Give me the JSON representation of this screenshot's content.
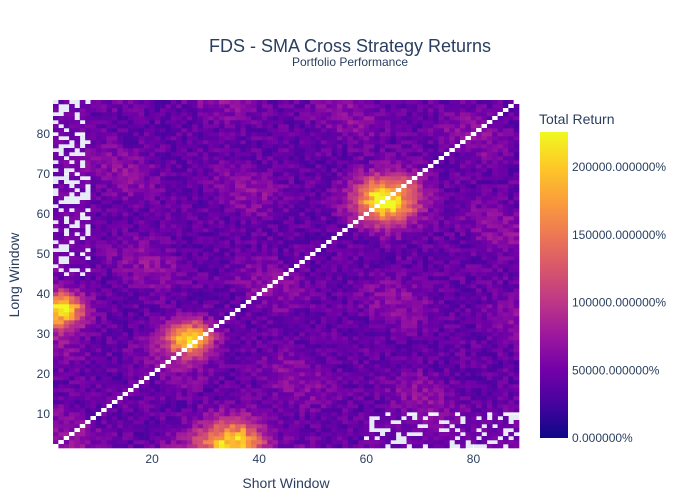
{
  "chart_data": {
    "type": "heatmap",
    "title": "FDS - SMA Cross Strategy Returns",
    "subtitle": "Portfolio Performance",
    "xlabel": "Short Window",
    "ylabel": "Long Window",
    "x_range": [
      2,
      88
    ],
    "y_range": [
      2,
      88
    ],
    "x_ticks": [
      "20",
      "40",
      "60",
      "80"
    ],
    "y_ticks": [
      "10",
      "20",
      "30",
      "40",
      "50",
      "60",
      "70",
      "80"
    ],
    "x_tick_values": [
      20,
      40,
      60,
      80
    ],
    "y_tick_values": [
      10,
      20,
      30,
      40,
      50,
      60,
      70,
      80
    ],
    "colorbar": {
      "title": "Total Return",
      "min": 0,
      "max": 2260,
      "tick_labels": [
        "0.000000%",
        "50000.000000%",
        "100000.000000%",
        "150000.000000%",
        "200000.000000%"
      ],
      "tick_values": [
        0,
        500,
        1000,
        1500,
        2000
      ]
    },
    "colorscale": [
      "#0d0887",
      "#46039f",
      "#7201a8",
      "#9c179e",
      "#bd3786",
      "#d8576b",
      "#ed7953",
      "#fb9f3a",
      "#fdca26",
      "#f0f921"
    ],
    "diagonal_color": "#ffffff",
    "background_color": "#e5ecf6",
    "hotspots": [
      {
        "x": 64,
        "y": 64,
        "value": 1700,
        "spread": 4
      },
      {
        "x": 27,
        "y": 29,
        "value": 1600,
        "spread": 3
      },
      {
        "x": 3,
        "y": 36,
        "value": 1900,
        "spread": 3
      },
      {
        "x": 35,
        "y": 3,
        "value": 1700,
        "spread": 4
      }
    ],
    "missing_regions": [
      {
        "from_x": 2,
        "to_x": 8,
        "from_y": 45,
        "to_y": 88
      },
      {
        "from_x": 60,
        "to_x": 88,
        "from_y": 2,
        "to_y": 10
      }
    ]
  }
}
